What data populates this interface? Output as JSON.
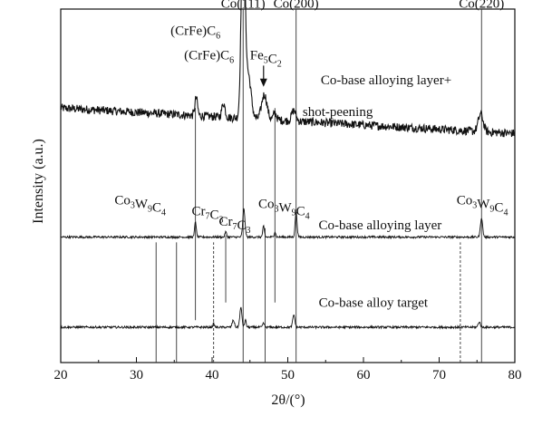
{
  "chart_data": {
    "type": "line",
    "xlabel": "2θ/(°)",
    "ylabel": "Intensity (a.u.)",
    "xlim": [
      20,
      80
    ],
    "xticks": [
      20,
      30,
      40,
      50,
      60,
      70,
      80
    ],
    "grid": false,
    "series": [
      {
        "name": "Co-base alloying layer+ shot-peening",
        "baseline": 0.72,
        "noise": 0.012,
        "slope": -0.0012,
        "peaks": [
          {
            "x": 37.9,
            "h": 0.05,
            "w": 0.25
          },
          {
            "x": 41.5,
            "h": 0.04,
            "w": 0.3
          },
          {
            "x": 44.1,
            "h": 0.58,
            "w": 0.35
          },
          {
            "x": 44.8,
            "h": 0.12,
            "w": 0.5
          },
          {
            "x": 46.9,
            "h": 0.07,
            "w": 0.5
          },
          {
            "x": 48.3,
            "h": 0.02,
            "w": 0.3
          },
          {
            "x": 50.8,
            "h": 0.03,
            "w": 0.4
          },
          {
            "x": 75.5,
            "h": 0.05,
            "w": 0.45
          }
        ]
      },
      {
        "name": "Co-base alloying layer",
        "baseline": 0.355,
        "noise": 0.003,
        "slope": 0.0,
        "peaks": [
          {
            "x": 37.8,
            "h": 0.045,
            "w": 0.15
          },
          {
            "x": 41.8,
            "h": 0.015,
            "w": 0.15
          },
          {
            "x": 44.2,
            "h": 0.08,
            "w": 0.2
          },
          {
            "x": 46.8,
            "h": 0.03,
            "w": 0.15
          },
          {
            "x": 48.3,
            "h": 0.015,
            "w": 0.15
          },
          {
            "x": 51.1,
            "h": 0.07,
            "w": 0.18
          },
          {
            "x": 75.6,
            "h": 0.055,
            "w": 0.2
          }
        ]
      },
      {
        "name": "Co-base alloy target",
        "baseline": 0.1,
        "noise": 0.003,
        "slope": 0.0,
        "peaks": [
          {
            "x": 40.2,
            "h": 0.01,
            "w": 0.15
          },
          {
            "x": 42.8,
            "h": 0.02,
            "w": 0.2
          },
          {
            "x": 43.8,
            "h": 0.055,
            "w": 0.2
          },
          {
            "x": 44.4,
            "h": 0.02,
            "w": 0.15
          },
          {
            "x": 46.8,
            "h": 0.012,
            "w": 0.15
          },
          {
            "x": 50.8,
            "h": 0.035,
            "w": 0.2
          },
          {
            "x": 75.3,
            "h": 0.015,
            "w": 0.2
          }
        ]
      }
    ],
    "reference_lines": [
      {
        "x": 44.1,
        "style": "solid",
        "from": 0,
        "to": 1.0
      },
      {
        "x": 51.1,
        "style": "solid",
        "from": 0,
        "to": 1.0
      },
      {
        "x": 75.6,
        "style": "solid",
        "from": 0,
        "to": 1.0
      },
      {
        "x": 37.8,
        "style": "solid",
        "from": 0.12,
        "to": 0.72
      },
      {
        "x": 47.0,
        "style": "solid",
        "from": 0.0,
        "to": 0.38
      },
      {
        "x": 48.3,
        "style": "solid",
        "from": 0.17,
        "to": 0.72
      },
      {
        "x": 41.8,
        "style": "solid",
        "from": 0.17,
        "to": 0.36
      },
      {
        "x": 32.6,
        "style": "solid",
        "from": 0.0,
        "to": 0.34
      },
      {
        "x": 35.3,
        "style": "solid",
        "from": 0.0,
        "to": 0.34
      },
      {
        "x": 40.2,
        "style": "dashed",
        "from": 0.0,
        "to": 0.34
      },
      {
        "x": 72.8,
        "style": "dashed",
        "from": 0.0,
        "to": 0.34
      }
    ],
    "annotations": [
      {
        "text": "Co(111)",
        "x": 44.1,
        "y": 1.04
      },
      {
        "text": "Co(200)",
        "x": 51.1,
        "y": 1.04
      },
      {
        "text": "Co(220)",
        "x": 75.6,
        "y": 1.04
      },
      {
        "text": "(CrFe)C6",
        "x": 37.8,
        "y": 0.94
      },
      {
        "text": "(CrFe)C6",
        "x": 39.6,
        "y": 0.87
      },
      {
        "text": "Fe5C2",
        "x": 47.1,
        "y": 0.87
      },
      {
        "text": "Co3W9C4",
        "x": 30.5,
        "y": 0.46
      },
      {
        "text": "Cr7C3",
        "x": 39.4,
        "y": 0.43
      },
      {
        "text": "Cr7C3",
        "x": 43.0,
        "y": 0.4
      },
      {
        "text": "Co3W9C4",
        "x": 49.5,
        "y": 0.45
      },
      {
        "text": "Co3W9C4",
        "x": 75.7,
        "y": 0.46
      }
    ],
    "series_labels": [
      {
        "text": "Co-base alloying layer+",
        "x": 63.0,
        "y": 0.8
      },
      {
        "text": "shot-peening",
        "x": 56.6,
        "y": 0.71
      },
      {
        "text": "Co-base alloying layer",
        "x": 62.2,
        "y": 0.39
      },
      {
        "text": "Co-base alloy target",
        "x": 61.3,
        "y": 0.17
      }
    ],
    "arrow": {
      "x": 46.8,
      "from": 0.84,
      "to": 0.78
    }
  }
}
